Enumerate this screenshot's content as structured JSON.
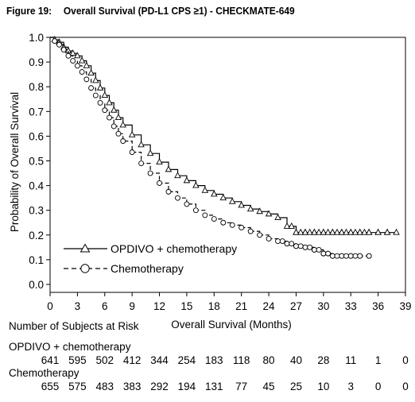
{
  "figure": {
    "label": "Figure 19:",
    "title": "Overall Survival (PD-L1 CPS ≥1) - CHECKMATE-649"
  },
  "chart_data": {
    "type": "line",
    "subtype": "kaplan-meier",
    "xlabel": "Overall Survival (Months)",
    "ylabel": "Probability of Overall Survival",
    "xlim": [
      0,
      39
    ],
    "ylim": [
      0,
      1
    ],
    "xticks": [
      0,
      3,
      6,
      9,
      12,
      15,
      18,
      21,
      24,
      27,
      30,
      33,
      36,
      39
    ],
    "yticks": [
      "0.0",
      "0.1",
      "0.2",
      "0.3",
      "0.4",
      "0.5",
      "0.6",
      "0.7",
      "0.8",
      "0.9",
      "1.0"
    ],
    "legend_position": "bottom-left",
    "series": [
      {
        "name": "OPDIVO + chemotherapy",
        "marker": "triangle",
        "linestyle": "solid",
        "x": [
          0,
          0.5,
          1,
          1.5,
          2,
          2.5,
          3,
          3.5,
          4,
          4.5,
          5,
          5.5,
          6,
          6.5,
          7,
          7.5,
          8,
          9,
          10,
          11,
          12,
          13,
          14,
          15,
          16,
          17,
          18,
          19,
          20,
          21,
          22,
          23,
          24,
          25,
          26,
          27,
          28,
          29,
          30,
          31,
          32,
          33,
          34,
          35,
          36,
          37,
          38
        ],
        "y": [
          1.0,
          0.99,
          0.98,
          0.96,
          0.945,
          0.935,
          0.925,
          0.905,
          0.885,
          0.855,
          0.825,
          0.795,
          0.765,
          0.735,
          0.705,
          0.675,
          0.645,
          0.605,
          0.565,
          0.53,
          0.495,
          0.465,
          0.44,
          0.42,
          0.4,
          0.38,
          0.365,
          0.35,
          0.335,
          0.32,
          0.305,
          0.295,
          0.285,
          0.27,
          0.235,
          0.21,
          0.21,
          0.21,
          0.21,
          0.21,
          0.21,
          0.21,
          0.21,
          0.21,
          0.21,
          0.21,
          0.21
        ],
        "censored_x": [
          26.5,
          27,
          27.5,
          28,
          28.5,
          29,
          29.5,
          30,
          30.5,
          31,
          31.5,
          32,
          32.5,
          33,
          33.5,
          34,
          34.5,
          35,
          36,
          37
        ]
      },
      {
        "name": "Chemotherapy",
        "marker": "circle",
        "linestyle": "dashed",
        "x": [
          0,
          0.5,
          1,
          1.5,
          2,
          2.5,
          3,
          3.5,
          4,
          4.5,
          5,
          5.5,
          6,
          6.5,
          7,
          7.5,
          8,
          9,
          10,
          11,
          12,
          13,
          14,
          15,
          16,
          17,
          18,
          19,
          20,
          21,
          22,
          23,
          24,
          25,
          26,
          27,
          28,
          29,
          30,
          31,
          32,
          33,
          34,
          35
        ],
        "y": [
          1.0,
          0.985,
          0.97,
          0.95,
          0.925,
          0.905,
          0.885,
          0.86,
          0.83,
          0.795,
          0.765,
          0.735,
          0.705,
          0.675,
          0.64,
          0.61,
          0.58,
          0.535,
          0.49,
          0.45,
          0.41,
          0.375,
          0.35,
          0.325,
          0.3,
          0.28,
          0.265,
          0.25,
          0.24,
          0.23,
          0.215,
          0.2,
          0.185,
          0.175,
          0.165,
          0.155,
          0.15,
          0.14,
          0.125,
          0.115,
          0.115,
          0.115,
          0.115,
          0.115
        ],
        "censored_x": [
          25.5,
          26,
          26.5,
          27,
          27.5,
          28,
          28.5,
          29,
          29.5,
          30,
          30.5,
          31,
          31.5,
          32,
          32.5,
          33,
          33.5,
          34,
          35
        ]
      }
    ]
  },
  "risk_table": {
    "title": "Number of Subjects at Risk",
    "months": [
      0,
      3,
      6,
      9,
      12,
      15,
      18,
      21,
      24,
      27,
      30,
      33,
      36,
      39
    ],
    "rows": [
      {
        "label": "OPDIVO + chemotherapy",
        "values": [
          "641",
          "595",
          "502",
          "412",
          "344",
          "254",
          "183",
          "118",
          "80",
          "40",
          "28",
          "11",
          "1",
          "0"
        ]
      },
      {
        "label": "Chemotherapy",
        "values": [
          "655",
          "575",
          "483",
          "383",
          "292",
          "194",
          "131",
          "77",
          "45",
          "25",
          "10",
          "3",
          "0",
          "0"
        ]
      }
    ]
  }
}
